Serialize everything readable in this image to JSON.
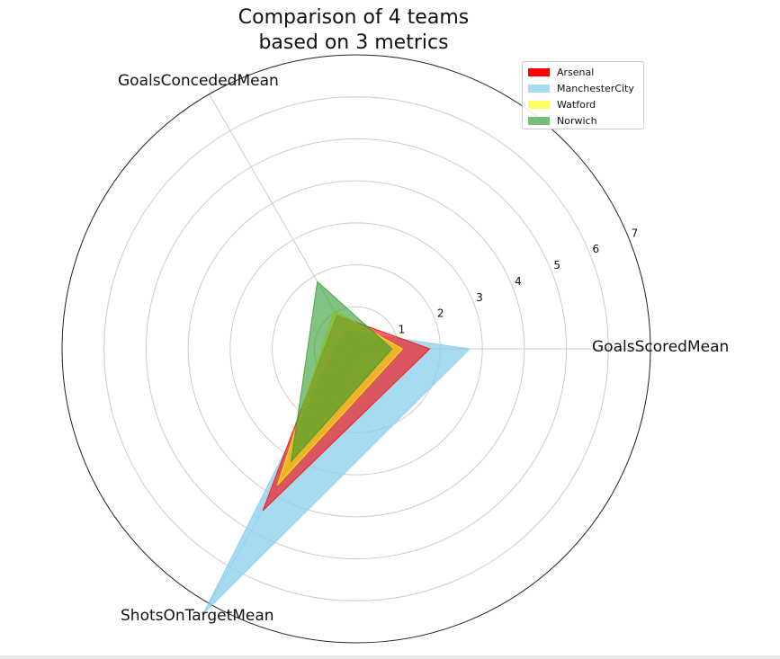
{
  "title": "Comparison of 4 teams\n based on 3 metrics",
  "chart_data": {
    "type": "radar",
    "title": "Comparison of 4 teams\n based on 3 metrics",
    "axes": [
      "GoalsScoredMean",
      "GoalsConcededMean",
      "ShotsOnTargetMean"
    ],
    "rticks": [
      1,
      2,
      3,
      4,
      5,
      6,
      7
    ],
    "rlim": [
      0,
      7
    ],
    "grid": true,
    "legend_position": "top-right",
    "series": [
      {
        "name": "Arsenal",
        "values": [
          1.75,
          0.92,
          4.45
        ],
        "color": "#ff0000"
      },
      {
        "name": "ManchesterCity",
        "values": [
          2.7,
          0.5,
          7.3
        ],
        "color": "#87ceeb"
      },
      {
        "name": "Watford",
        "values": [
          1.1,
          1.05,
          3.75
        ],
        "color": "#ffff00"
      },
      {
        "name": "Norwich",
        "values": [
          0.85,
          1.85,
          3.1
        ],
        "color": "#2e9b2e"
      }
    ]
  }
}
